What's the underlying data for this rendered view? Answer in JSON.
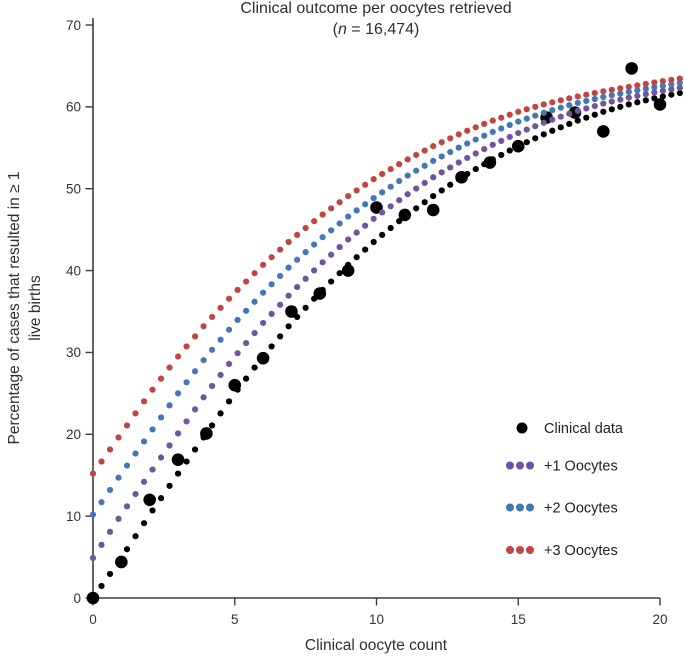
{
  "chart_data": {
    "type": "scatter",
    "title": "Clinical outcome per oocytes retrieved",
    "subtitle": "(n = 16,474)",
    "subtitle_parts": {
      "open": "(",
      "var": "n",
      "rest": " = 16,474)"
    },
    "n_total": "16,474",
    "xlabel": "Clinical oocyte count",
    "ylabel_line1": "Percentage of cases that resulted in ≥ 1",
    "ylabel_line2": "live births",
    "xlim": [
      0,
      20.7
    ],
    "ylim": [
      0,
      70
    ],
    "x_ticks": [
      0,
      5,
      10,
      15,
      20
    ],
    "y_ticks": [
      0,
      10,
      20,
      30,
      40,
      50,
      60,
      70
    ],
    "grid": false,
    "legend_position": "lower right",
    "clinical_points": {
      "name": "Clinical data",
      "color": "#000000",
      "x": [
        0,
        1,
        2,
        3,
        4,
        5,
        6,
        7,
        8,
        9,
        10,
        11,
        12,
        13,
        14,
        15,
        16,
        17,
        18,
        19,
        20
      ],
      "y": [
        0,
        4.4,
        12.0,
        16.9,
        20.1,
        26.0,
        29.3,
        35.0,
        37.2,
        40.0,
        47.7,
        46.8,
        47.4,
        51.4,
        53.2,
        55.2,
        58.7,
        59.3,
        57.0,
        64.7,
        60.3
      ]
    },
    "fitted_curve_anchors": {
      "comment_visible_meaning": "dotted model fit of live-birth % vs oocyte count; colored curves are this fit shifted by +1/+2/+3 oocytes",
      "x": [
        0,
        1,
        2,
        3,
        4,
        5,
        6,
        7,
        8,
        9,
        10,
        11,
        12,
        13,
        14,
        15,
        16,
        17,
        18,
        19,
        20,
        21,
        22,
        23,
        24
      ],
      "y": [
        0,
        4.9,
        10.2,
        15.2,
        20.1,
        25.0,
        29.5,
        33.6,
        37.3,
        40.7,
        43.8,
        46.6,
        49.1,
        51.4,
        53.4,
        55.2,
        56.8,
        58.2,
        59.4,
        60.4,
        61.2,
        61.9,
        62.5,
        63.1,
        63.6
      ]
    },
    "dotted_series": [
      {
        "name": "Model fit",
        "shift": 0,
        "color": "#000000"
      },
      {
        "name": "+1 Oocytes",
        "shift": 1,
        "color": "#71549e"
      },
      {
        "name": "+2 Oocytes",
        "shift": 2,
        "color": "#4377b8"
      },
      {
        "name": "+3 Oocytes",
        "shift": 3,
        "color": "#c14643"
      }
    ],
    "curve_t_start": 0,
    "curve_t_end": 20.7,
    "curve_t_step": 0.3,
    "legend": {
      "items": [
        {
          "label": "Clinical data",
          "color": "#000000",
          "marker": "single"
        },
        {
          "label": "+1 Oocytes",
          "color": "#6f539e",
          "marker": "triple"
        },
        {
          "label": "+2 Oocytes",
          "color": "#4377b8",
          "marker": "triple"
        },
        {
          "label": "+3 Oocytes",
          "color": "#c04744",
          "marker": "triple"
        }
      ]
    },
    "axis_color": "#3d3d3d"
  }
}
